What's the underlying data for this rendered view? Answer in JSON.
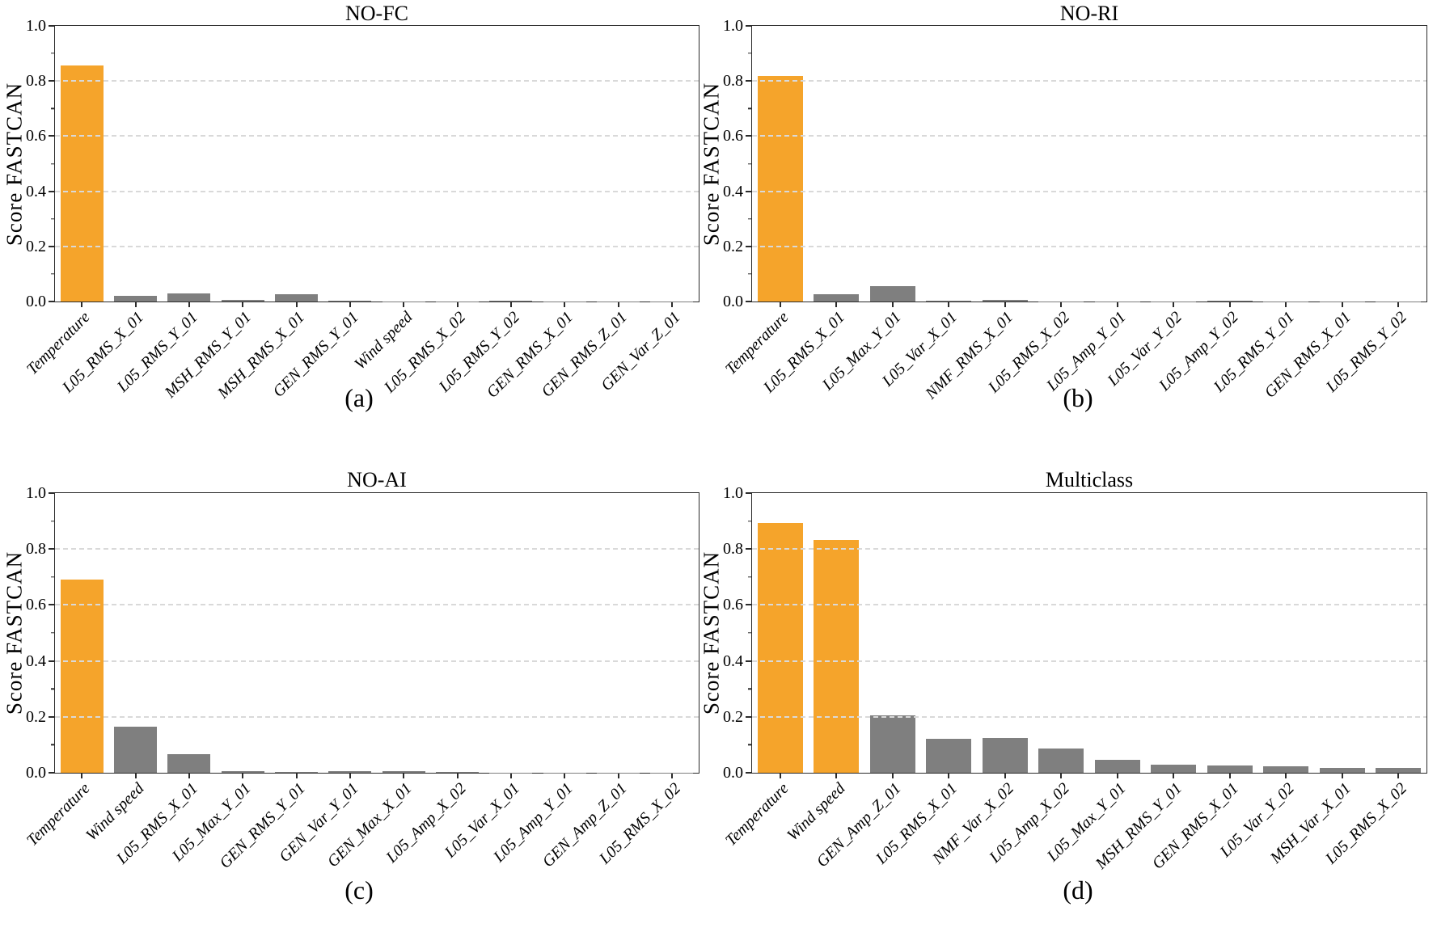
{
  "colors": {
    "highlight": "#F5A42B",
    "default": "#7F7F7F",
    "grid": "#D9D9D9",
    "spine": "#2B2B2B"
  },
  "chart_data": [
    {
      "type": "bar",
      "title": "NO-FC",
      "caption": "(a)",
      "xlabel": "",
      "ylabel": "Score FASTCAN",
      "ylim": [
        0,
        1
      ],
      "yticks": [
        0,
        0.2,
        0.4,
        0.6,
        0.8,
        1.0
      ],
      "grid": "horizontal-dashed",
      "legend": "none",
      "categories": [
        "Temperature",
        "L05_RMS_X_01",
        "L05_RMS_Y_01",
        "MSH_RMS_Y_01",
        "MSH_RMS_X_01",
        "GEN_RMS_Y_01",
        "Wind speed",
        "L05_RMS_X_02",
        "L05_RMS_Y_02",
        "GEN_RMS_X_01",
        "GEN_RMS_Z_01",
        "GEN_Var_Z_01"
      ],
      "values": [
        0.855,
        0.02,
        0.028,
        0.007,
        0.025,
        0.002,
        0.001,
        0.001,
        0.002,
        0.001,
        0.001,
        0.001
      ],
      "highlighted_indices": [
        0
      ]
    },
    {
      "type": "bar",
      "title": "NO-RI",
      "caption": "(b)",
      "xlabel": "",
      "ylabel": "Score FASTCAN",
      "ylim": [
        0,
        1
      ],
      "yticks": [
        0,
        0.2,
        0.4,
        0.6,
        0.8,
        1.0
      ],
      "grid": "horizontal-dashed",
      "legend": "none",
      "categories": [
        "Temperature",
        "L05_RMS_X_01",
        "L05_Max_Y_01",
        "L05_Var_X_01",
        "NMF_RMS_X_01",
        "L05_RMS_X_02",
        "L05_Amp_Y_01",
        "L05_Var_Y_02",
        "L05_Amp_Y_02",
        "L05_RMS_Y_01",
        "GEN_RMS_X_01",
        "L05_RMS_Y_02"
      ],
      "values": [
        0.817,
        0.027,
        0.057,
        0.003,
        0.005,
        0.001,
        0.001,
        0.001,
        0.002,
        0.001,
        0.001,
        0.001
      ],
      "highlighted_indices": [
        0
      ]
    },
    {
      "type": "bar",
      "title": "NO-AI",
      "caption": "(c)",
      "xlabel": "",
      "ylabel": "Score FASTCAN",
      "ylim": [
        0,
        1
      ],
      "yticks": [
        0,
        0.2,
        0.4,
        0.6,
        0.8,
        1.0
      ],
      "grid": "horizontal-dashed",
      "legend": "none",
      "categories": [
        "Temperature",
        "Wind speed",
        "L05_RMS_X_01",
        "L05_Max_Y_01",
        "GEN_RMS_Y_01",
        "GEN_Var_Y_01",
        "GEN_Max_X_01",
        "L05_Amp_X_02",
        "L05_Var_X_01",
        "L05_Amp_Y_01",
        "GEN_Amp_Z_01",
        "L05_RMS_X_02"
      ],
      "values": [
        0.69,
        0.164,
        0.066,
        0.007,
        0.002,
        0.005,
        0.005,
        0.002,
        0.001,
        0.001,
        0.001,
        0.001
      ],
      "highlighted_indices": [
        0
      ]
    },
    {
      "type": "bar",
      "title": "Multiclass",
      "caption": "(d)",
      "xlabel": "",
      "ylabel": "Score FASTCAN",
      "ylim": [
        0,
        1
      ],
      "yticks": [
        0,
        0.2,
        0.4,
        0.6,
        0.8,
        1.0
      ],
      "grid": "horizontal-dashed",
      "legend": "none",
      "categories": [
        "Temperature",
        "Wind speed",
        "GEN_Amp_Z_01",
        "L05_RMS_X_01",
        "NMF_Var_X_02",
        "L05_Amp_X_02",
        "L05_Max_Y_01",
        "MSH_RMS_Y_01",
        "GEN_RMS_X_01",
        "L05_Var_Y_02",
        "MSH_Var_X_01",
        "L05_RMS_X_02"
      ],
      "values": [
        0.893,
        0.832,
        0.206,
        0.121,
        0.124,
        0.087,
        0.045,
        0.028,
        0.027,
        0.023,
        0.018,
        0.018
      ],
      "highlighted_indices": [
        0,
        1
      ]
    }
  ]
}
